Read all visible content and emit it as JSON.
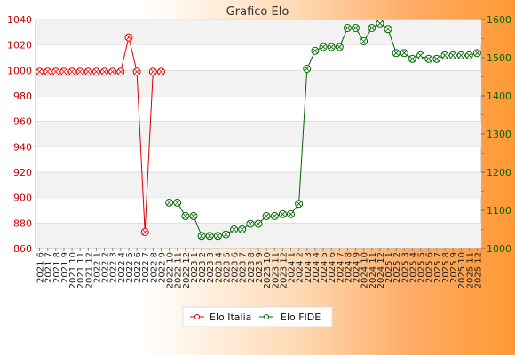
{
  "chart_data": {
    "type": "line",
    "title": "Grafico Elo",
    "categories": [
      "2021 6",
      "2021 7",
      "2021 8",
      "2021 9",
      "2021 10",
      "2021 11",
      "2021 12",
      "2022 1",
      "2022 2",
      "2022 3",
      "2022 4",
      "2022 5",
      "2022 6",
      "2022 7",
      "2022 8",
      "2022 9",
      "2022 10",
      "2022 11",
      "2022 12",
      "2023 1",
      "2023 2",
      "2023 3",
      "2023 4",
      "2023 5",
      "2023 6",
      "2023 7",
      "2023 8",
      "2023 9",
      "2023 10",
      "2023 11",
      "2023 12",
      "2024 1",
      "2024 2",
      "2024 3",
      "2024 4",
      "2024 5",
      "2024 6",
      "2024 7",
      "2024 8",
      "2024 9",
      "2024 10",
      "2024 11",
      "2024 12",
      "2025 1",
      "2025 2",
      "2025 3",
      "2025 4",
      "2025 5",
      "2025 6",
      "2025 7",
      "2025 8",
      "2025 9",
      "2025 10",
      "2025 11",
      "2025 12"
    ],
    "left_axis": {
      "min": 860,
      "max": 1040,
      "ticks": [
        860,
        880,
        900,
        920,
        940,
        960,
        980,
        1000,
        1020,
        1040
      ],
      "color": "#cc0000"
    },
    "right_axis": {
      "min": 1000,
      "max": 1600,
      "ticks": [
        1000,
        1100,
        1200,
        1300,
        1400,
        1500,
        1600
      ],
      "color": "#006600"
    },
    "series": [
      {
        "name": "Elo Italia",
        "axis": "left",
        "color": "#dd0000",
        "values": [
          999,
          999,
          999,
          999,
          999,
          999,
          999,
          999,
          999,
          999,
          999,
          1026,
          999,
          873,
          999,
          999,
          null,
          null,
          null,
          null,
          null,
          null,
          null,
          null,
          null,
          null,
          null,
          null,
          null,
          null,
          null,
          null,
          null,
          null,
          null,
          null,
          null,
          null,
          null,
          null,
          null,
          null,
          null,
          null,
          null,
          null,
          null,
          null,
          null,
          null,
          null,
          null,
          null,
          null,
          null
        ]
      },
      {
        "name": "Elo FIDE",
        "axis": "right",
        "color": "#006600",
        "values": [
          null,
          null,
          null,
          null,
          null,
          null,
          null,
          null,
          null,
          null,
          null,
          null,
          null,
          null,
          null,
          null,
          1120,
          1120,
          1085,
          1085,
          1033,
          1033,
          1033,
          1037,
          1050,
          1050,
          1065,
          1065,
          1085,
          1085,
          1090,
          1090,
          1117,
          1471,
          1518,
          1528,
          1528,
          1528,
          1578,
          1578,
          1543,
          1578,
          1590,
          1575,
          1512,
          1512,
          1497,
          1506,
          1497,
          1497,
          1506,
          1506,
          1506,
          1506,
          1512
        ]
      }
    ],
    "grid": "horizontal bands",
    "legend_position": "bottom-center"
  }
}
